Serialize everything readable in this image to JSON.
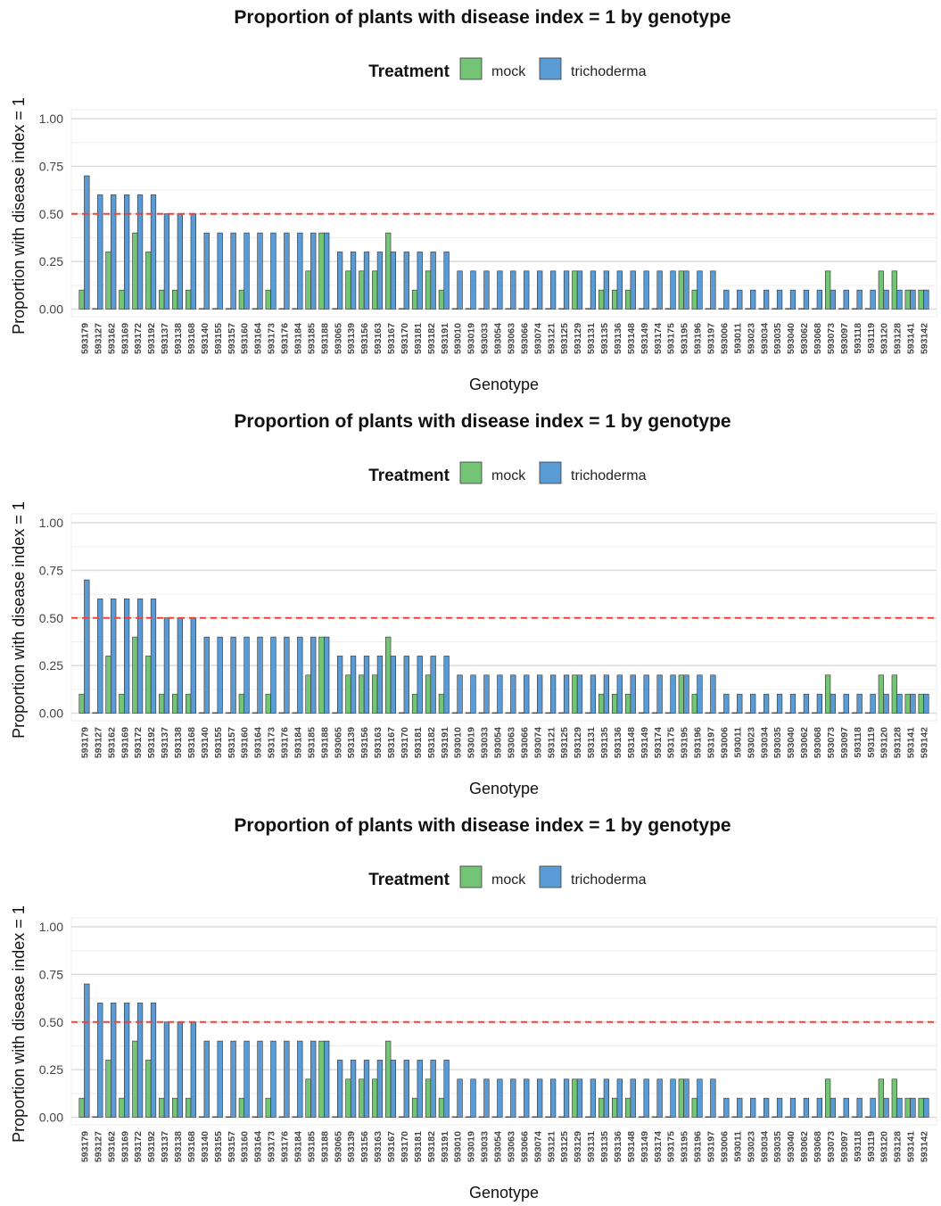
{
  "chart_data": [
    {
      "type": "bar",
      "title": "Proportion of plants with disease index = 1 by genotype",
      "xlabel": "Genotype",
      "ylabel": "Proportion with disease index = 1",
      "ylim": [
        0,
        1
      ],
      "yticks": [
        "0.00",
        "0.25",
        "0.50",
        "0.75",
        "1.00"
      ],
      "reference_line": {
        "y": 0.5,
        "color": "#e8463a",
        "style": "dashed"
      },
      "legend": {
        "title": "Treatment",
        "position": "top"
      },
      "grid": true,
      "categories": [
        "593179",
        "593127",
        "593162",
        "593169",
        "593172",
        "593192",
        "593137",
        "593138",
        "593168",
        "593140",
        "593155",
        "593157",
        "593160",
        "593164",
        "593173",
        "593176",
        "593184",
        "593185",
        "593188",
        "593065",
        "593139",
        "593156",
        "593163",
        "593167",
        "593170",
        "593181",
        "593182",
        "593191",
        "593010",
        "593019",
        "593033",
        "593054",
        "593063",
        "593066",
        "593074",
        "593121",
        "593125",
        "593129",
        "593131",
        "593135",
        "593136",
        "593148",
        "593149",
        "593174",
        "593175",
        "593195",
        "593196",
        "593197",
        "593006",
        "593011",
        "593023",
        "593034",
        "593035",
        "593040",
        "593062",
        "593068",
        "593073",
        "593097",
        "593118",
        "593119",
        "593120",
        "593128",
        "593141",
        "593142"
      ],
      "series": [
        {
          "name": "mock",
          "color": "#74c476",
          "values": [
            0.1,
            0,
            0.3,
            0.1,
            0.4,
            0.3,
            0.1,
            0.1,
            0.1,
            0,
            0,
            0,
            0.1,
            0,
            0.1,
            0,
            0,
            0.2,
            0.4,
            0,
            0.2,
            0.2,
            0.2,
            0.4,
            0,
            0.1,
            0.2,
            0.1,
            0,
            0,
            0,
            0,
            0,
            0,
            0,
            0,
            0,
            0.2,
            0,
            0.1,
            0.1,
            0.1,
            0,
            0,
            0,
            0.2,
            0.1,
            0,
            0,
            0,
            0,
            0,
            0,
            0,
            0,
            0,
            0.2,
            0,
            0,
            0,
            0.2,
            0.2,
            0.1,
            0.1
          ]
        },
        {
          "name": "trichoderma",
          "color": "#5b9bd5",
          "values": [
            0.7,
            0.6,
            0.6,
            0.6,
            0.6,
            0.6,
            0.5,
            0.5,
            0.5,
            0.4,
            0.4,
            0.4,
            0.4,
            0.4,
            0.4,
            0.4,
            0.4,
            0.4,
            0.4,
            0.3,
            0.3,
            0.3,
            0.3,
            0.3,
            0.3,
            0.3,
            0.3,
            0.3,
            0.2,
            0.2,
            0.2,
            0.2,
            0.2,
            0.2,
            0.2,
            0.2,
            0.2,
            0.2,
            0.2,
            0.2,
            0.2,
            0.2,
            0.2,
            0.2,
            0.2,
            0.2,
            0.2,
            0.2,
            0.1,
            0.1,
            0.1,
            0.1,
            0.1,
            0.1,
            0.1,
            0.1,
            0.1,
            0.1,
            0.1,
            0.1,
            0.1,
            0.1,
            0.1,
            0.1
          ]
        }
      ]
    },
    {
      "type": "bar",
      "title": "Proportion of plants with disease index = 1 by genotype",
      "xlabel": "Genotype",
      "ylabel": "Proportion with disease index = 1",
      "ylim": [
        0,
        1
      ],
      "yticks": [
        "0.00",
        "0.25",
        "0.50",
        "0.75",
        "1.00"
      ],
      "reference_line": {
        "y": 0.5,
        "color": "#e8463a",
        "style": "dashed"
      },
      "legend": {
        "title": "Treatment",
        "position": "top"
      },
      "grid": true,
      "categories": [
        "593179",
        "593127",
        "593162",
        "593169",
        "593172",
        "593192",
        "593137",
        "593138",
        "593168",
        "593140",
        "593155",
        "593157",
        "593160",
        "593164",
        "593173",
        "593176",
        "593184",
        "593185",
        "593188",
        "593065",
        "593139",
        "593156",
        "593163",
        "593167",
        "593170",
        "593181",
        "593182",
        "593191",
        "593010",
        "593019",
        "593033",
        "593054",
        "593063",
        "593066",
        "593074",
        "593121",
        "593125",
        "593129",
        "593131",
        "593135",
        "593136",
        "593148",
        "593149",
        "593174",
        "593175",
        "593195",
        "593196",
        "593197",
        "593006",
        "593011",
        "593023",
        "593034",
        "593035",
        "593040",
        "593062",
        "593068",
        "593073",
        "593097",
        "593118",
        "593119",
        "593120",
        "593128",
        "593141",
        "593142"
      ],
      "series": [
        {
          "name": "mock",
          "color": "#74c476",
          "values": [
            0.1,
            0,
            0.3,
            0.1,
            0.4,
            0.3,
            0.1,
            0.1,
            0.1,
            0,
            0,
            0,
            0.1,
            0,
            0.1,
            0,
            0,
            0.2,
            0.4,
            0,
            0.2,
            0.2,
            0.2,
            0.4,
            0,
            0.1,
            0.2,
            0.1,
            0,
            0,
            0,
            0,
            0,
            0,
            0,
            0,
            0,
            0.2,
            0,
            0.1,
            0.1,
            0.1,
            0,
            0,
            0,
            0.2,
            0.1,
            0,
            0,
            0,
            0,
            0,
            0,
            0,
            0,
            0,
            0.2,
            0,
            0,
            0,
            0.2,
            0.2,
            0.1,
            0.1
          ]
        },
        {
          "name": "trichoderma",
          "color": "#5b9bd5",
          "values": [
            0.7,
            0.6,
            0.6,
            0.6,
            0.6,
            0.6,
            0.5,
            0.5,
            0.5,
            0.4,
            0.4,
            0.4,
            0.4,
            0.4,
            0.4,
            0.4,
            0.4,
            0.4,
            0.4,
            0.3,
            0.3,
            0.3,
            0.3,
            0.3,
            0.3,
            0.3,
            0.3,
            0.3,
            0.2,
            0.2,
            0.2,
            0.2,
            0.2,
            0.2,
            0.2,
            0.2,
            0.2,
            0.2,
            0.2,
            0.2,
            0.2,
            0.2,
            0.2,
            0.2,
            0.2,
            0.2,
            0.2,
            0.2,
            0.1,
            0.1,
            0.1,
            0.1,
            0.1,
            0.1,
            0.1,
            0.1,
            0.1,
            0.1,
            0.1,
            0.1,
            0.1,
            0.1,
            0.1,
            0.1
          ]
        }
      ]
    },
    {
      "type": "bar",
      "title": "Proportion of plants with disease index = 1 by genotype",
      "xlabel": "Genotype",
      "ylabel": "Proportion with disease index = 1",
      "ylim": [
        0,
        1
      ],
      "yticks": [
        "0.00",
        "0.25",
        "0.50",
        "0.75",
        "1.00"
      ],
      "reference_line": {
        "y": 0.5,
        "color": "#e8463a",
        "style": "dashed"
      },
      "legend": {
        "title": "Treatment",
        "position": "top"
      },
      "grid": true,
      "categories": [
        "593179",
        "593127",
        "593162",
        "593169",
        "593172",
        "593192",
        "593137",
        "593138",
        "593168",
        "593140",
        "593155",
        "593157",
        "593160",
        "593164",
        "593173",
        "593176",
        "593184",
        "593185",
        "593188",
        "593065",
        "593139",
        "593156",
        "593163",
        "593167",
        "593170",
        "593181",
        "593182",
        "593191",
        "593010",
        "593019",
        "593033",
        "593054",
        "593063",
        "593066",
        "593074",
        "593121",
        "593125",
        "593129",
        "593131",
        "593135",
        "593136",
        "593148",
        "593149",
        "593174",
        "593175",
        "593195",
        "593196",
        "593197",
        "593006",
        "593011",
        "593023",
        "593034",
        "593035",
        "593040",
        "593062",
        "593068",
        "593073",
        "593097",
        "593118",
        "593119",
        "593120",
        "593128",
        "593141",
        "593142"
      ],
      "series": [
        {
          "name": "mock",
          "color": "#74c476",
          "values": [
            0.1,
            0,
            0.3,
            0.1,
            0.4,
            0.3,
            0.1,
            0.1,
            0.1,
            0,
            0,
            0,
            0.1,
            0,
            0.1,
            0,
            0,
            0.2,
            0.4,
            0,
            0.2,
            0.2,
            0.2,
            0.4,
            0,
            0.1,
            0.2,
            0.1,
            0,
            0,
            0,
            0,
            0,
            0,
            0,
            0,
            0,
            0.2,
            0,
            0.1,
            0.1,
            0.1,
            0,
            0,
            0,
            0.2,
            0.1,
            0,
            0,
            0,
            0,
            0,
            0,
            0,
            0,
            0,
            0.2,
            0,
            0,
            0,
            0.2,
            0.2,
            0.1,
            0.1
          ]
        },
        {
          "name": "trichoderma",
          "color": "#5b9bd5",
          "values": [
            0.7,
            0.6,
            0.6,
            0.6,
            0.6,
            0.6,
            0.5,
            0.5,
            0.5,
            0.4,
            0.4,
            0.4,
            0.4,
            0.4,
            0.4,
            0.4,
            0.4,
            0.4,
            0.4,
            0.3,
            0.3,
            0.3,
            0.3,
            0.3,
            0.3,
            0.3,
            0.3,
            0.3,
            0.2,
            0.2,
            0.2,
            0.2,
            0.2,
            0.2,
            0.2,
            0.2,
            0.2,
            0.2,
            0.2,
            0.2,
            0.2,
            0.2,
            0.2,
            0.2,
            0.2,
            0.2,
            0.2,
            0.2,
            0.1,
            0.1,
            0.1,
            0.1,
            0.1,
            0.1,
            0.1,
            0.1,
            0.1,
            0.1,
            0.1,
            0.1,
            0.1,
            0.1,
            0.1,
            0.1
          ]
        }
      ]
    }
  ]
}
